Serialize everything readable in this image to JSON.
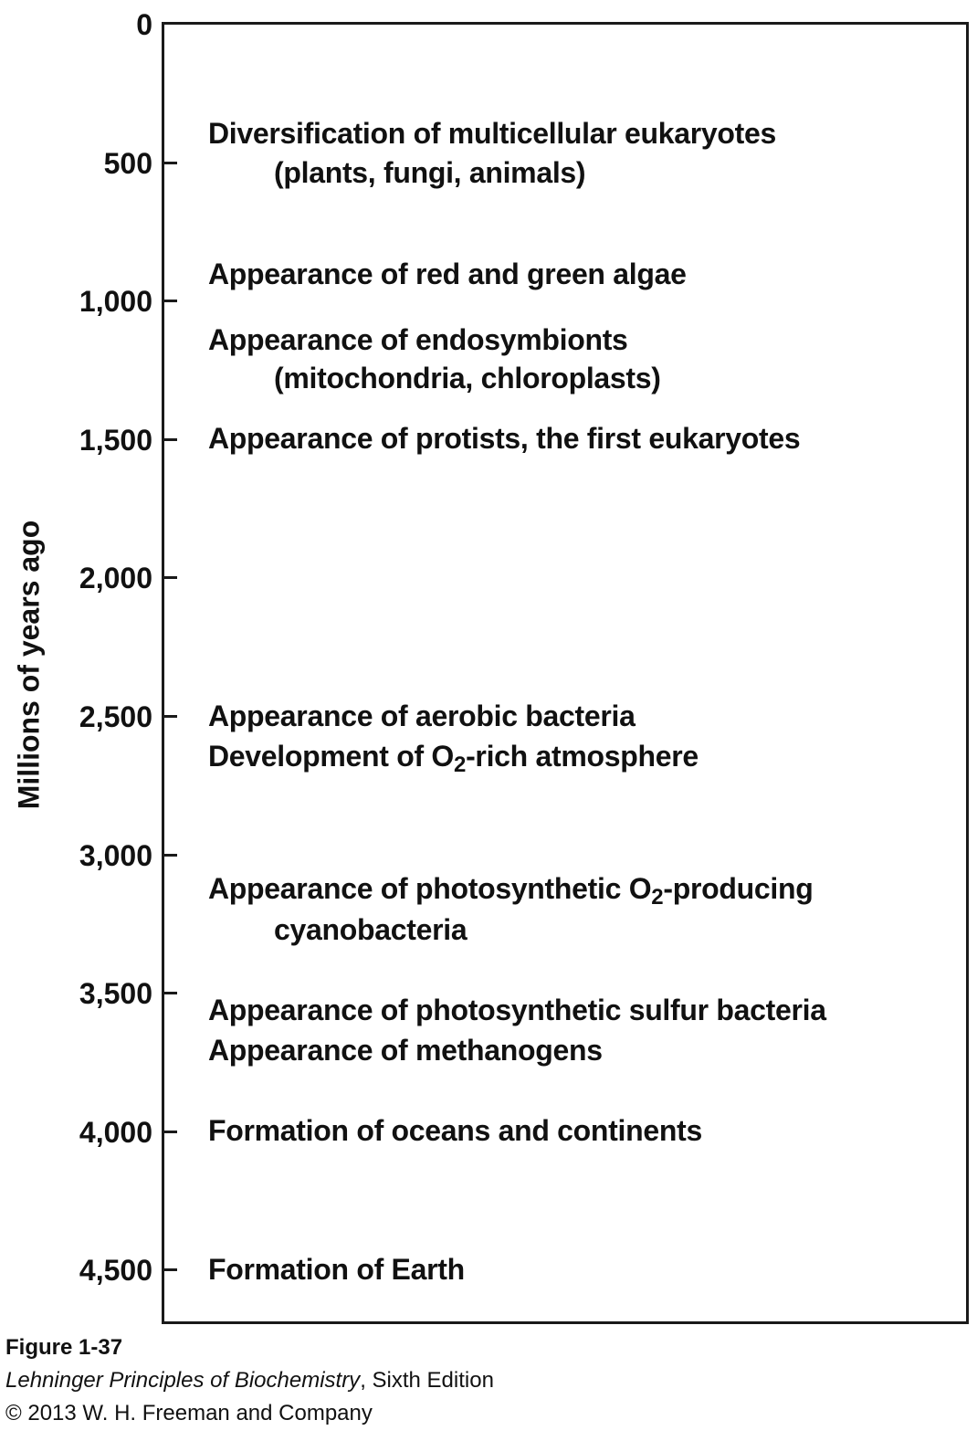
{
  "axis": {
    "label": "Millions of years ago",
    "ticks": [
      "0",
      "500",
      "1,000",
      "1,500",
      "2,000",
      "2,500",
      "3,000",
      "3,500",
      "4,000",
      "4,500"
    ]
  },
  "events": [
    {
      "line": "Diversification of multicellular eukaryotes"
    },
    {
      "line": "(plants, fungi, animals)"
    },
    {
      "line": "Appearance of red and green algae"
    },
    {
      "line": "Appearance of endosymbionts"
    },
    {
      "line": "(mitochondria, chloroplasts)"
    },
    {
      "line": "Appearance of protists, the first eukaryotes"
    },
    {
      "line": "Appearance of aerobic bacteria"
    },
    {
      "pre": "Development of O",
      "sub": "2",
      "post": "-rich atmosphere"
    },
    {
      "pre": "Appearance of photosynthetic O",
      "sub": "2",
      "post": "-producing"
    },
    {
      "line": "cyanobacteria"
    },
    {
      "line": "Appearance of photosynthetic sulfur bacteria"
    },
    {
      "line": "Appearance of methanogens"
    },
    {
      "line": "Formation of oceans and continents"
    },
    {
      "line": "Formation of Earth"
    }
  ],
  "caption": {
    "figure": "Figure 1-37",
    "book_title": "Lehninger Principles of Biochemistry",
    "edition": ", Sixth Edition",
    "copyright": "© 2013 W. H. Freeman and Company"
  }
}
